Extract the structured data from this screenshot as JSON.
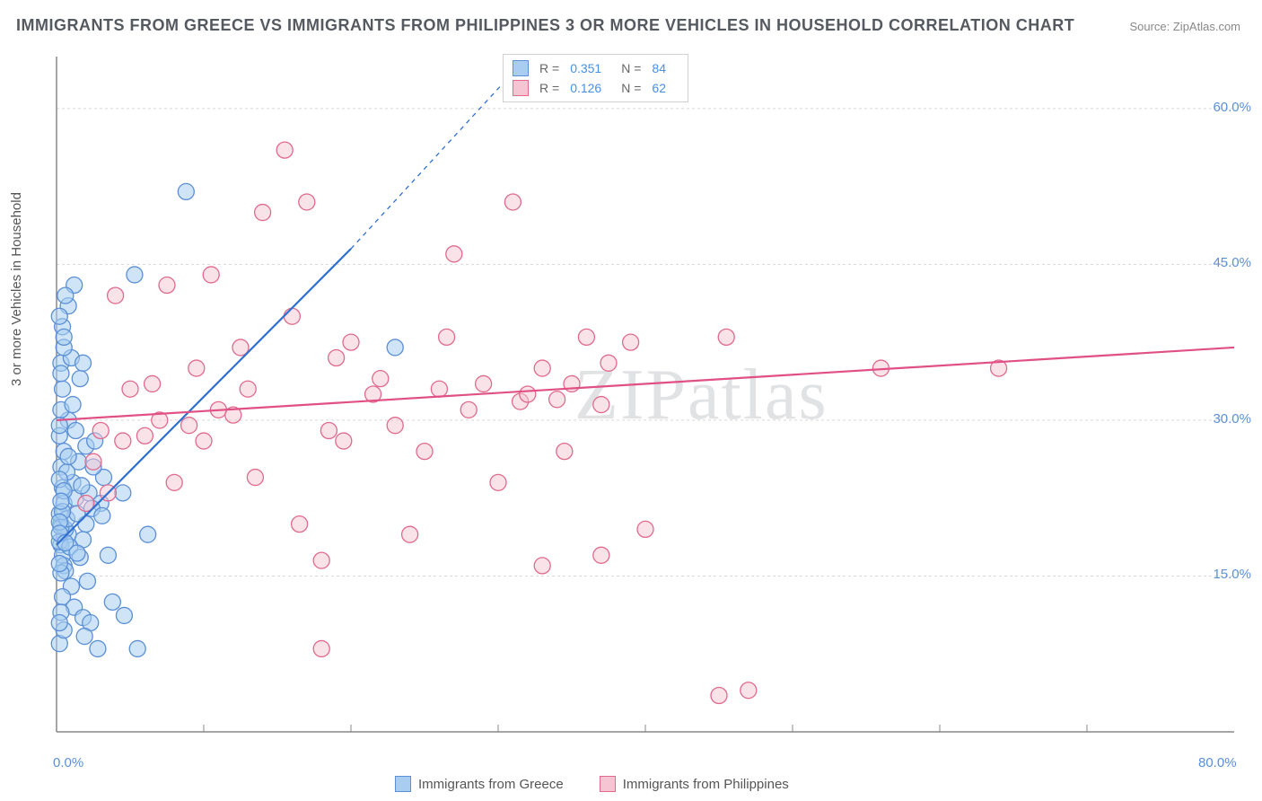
{
  "title": "IMMIGRANTS FROM GREECE VS IMMIGRANTS FROM PHILIPPINES 3 OR MORE VEHICLES IN HOUSEHOLD CORRELATION CHART",
  "source": "Source: ZipAtlas.com",
  "y_axis_label": "3 or more Vehicles in Household",
  "watermark": "ZIPatlas",
  "chart": {
    "type": "scatter",
    "xlim": [
      0,
      80
    ],
    "ylim": [
      0,
      65
    ],
    "x_ticks": [
      0,
      80
    ],
    "x_tick_labels": [
      "0.0%",
      "80.0%"
    ],
    "y_ticks": [
      15,
      30,
      45,
      60
    ],
    "y_tick_labels": [
      "15.0%",
      "30.0%",
      "45.0%",
      "60.0%"
    ],
    "x_minor_ticks": [
      10,
      20,
      30,
      40,
      50,
      60,
      70
    ],
    "background_color": "#ffffff",
    "grid_color": "#d8d8d8",
    "grid_dash": "3,3",
    "axis_color": "#888888",
    "marker_radius": 9,
    "marker_stroke_width": 1.3,
    "series": [
      {
        "name": "Immigrants from Greece",
        "color_fill": "#a8cdf0",
        "color_stroke": "#5b8fd6",
        "fill_opacity": 0.55,
        "trend": {
          "x1": 0,
          "y1": 18,
          "x2": 20,
          "y2": 46.5,
          "color": "#2f6fd0",
          "width": 2.2,
          "extend_dash": true,
          "dash_x2": 32,
          "dash_y2": 65
        },
        "r": "0.351",
        "n": "84",
        "points": [
          [
            0.3,
            18
          ],
          [
            0.4,
            17
          ],
          [
            0.5,
            16
          ],
          [
            0.3,
            20
          ],
          [
            0.8,
            19
          ],
          [
            0.6,
            15.5
          ],
          [
            1,
            14
          ],
          [
            0.4,
            13
          ],
          [
            1.2,
            12
          ],
          [
            0.3,
            11.5
          ],
          [
            1.8,
            11
          ],
          [
            2.3,
            10.5
          ],
          [
            0.2,
            8.5
          ],
          [
            2.8,
            8
          ],
          [
            5.5,
            8
          ],
          [
            0.5,
            22
          ],
          [
            1.3,
            22.5
          ],
          [
            0.4,
            23.5
          ],
          [
            1.1,
            24
          ],
          [
            2.2,
            23
          ],
          [
            0.3,
            25.5
          ],
          [
            1.5,
            26
          ],
          [
            0.5,
            27
          ],
          [
            2,
            27.5
          ],
          [
            0.2,
            28.5
          ],
          [
            2.6,
            28
          ],
          [
            0.8,
            30
          ],
          [
            0.4,
            33
          ],
          [
            1.6,
            34
          ],
          [
            0.3,
            35.5
          ],
          [
            1,
            36
          ],
          [
            0.5,
            37
          ],
          [
            0.8,
            41
          ],
          [
            1.2,
            43
          ],
          [
            5.3,
            44
          ],
          [
            8.8,
            52
          ],
          [
            0.2,
            21
          ],
          [
            3,
            22
          ],
          [
            4.5,
            23
          ],
          [
            6.2,
            19
          ],
          [
            3.5,
            17
          ],
          [
            2,
            20
          ],
          [
            0.6,
            19.5
          ],
          [
            1.8,
            18.5
          ],
          [
            0.3,
            19.7
          ],
          [
            2.4,
            21.5
          ],
          [
            3.2,
            24.5
          ],
          [
            0.7,
            20.5
          ],
          [
            1.4,
            21
          ],
          [
            0.2,
            18.3
          ],
          [
            0.9,
            17.8
          ],
          [
            1.6,
            16.8
          ],
          [
            0.3,
            15.3
          ],
          [
            2.1,
            14.5
          ],
          [
            3.8,
            12.5
          ],
          [
            4.6,
            11.2
          ],
          [
            0.5,
            9.8
          ],
          [
            1.9,
            9.2
          ],
          [
            0.2,
            10.5
          ],
          [
            0.7,
            25
          ],
          [
            0.3,
            31
          ],
          [
            1.1,
            31.5
          ],
          [
            0.4,
            39
          ],
          [
            0.2,
            40
          ],
          [
            23,
            37
          ],
          [
            0.6,
            42
          ],
          [
            0.3,
            34.5
          ],
          [
            1.8,
            35.5
          ],
          [
            0.5,
            38
          ],
          [
            0.2,
            29.5
          ],
          [
            1.3,
            29
          ],
          [
            0.8,
            26.5
          ],
          [
            0.2,
            24.3
          ],
          [
            2.5,
            25.5
          ],
          [
            0.4,
            21.2
          ],
          [
            0.2,
            20.2
          ],
          [
            3.1,
            20.8
          ],
          [
            0.5,
            23.2
          ],
          [
            0.3,
            22.2
          ],
          [
            1.7,
            23.7
          ],
          [
            0.2,
            19.1
          ],
          [
            0.6,
            18.2
          ],
          [
            1.4,
            17.2
          ],
          [
            0.2,
            16.2
          ]
        ]
      },
      {
        "name": "Immigrants from Philippines",
        "color_fill": "#f5c5d3",
        "color_stroke": "#e06a8c",
        "fill_opacity": 0.5,
        "trend": {
          "x1": 0,
          "y1": 30,
          "x2": 80,
          "y2": 37,
          "color": "#e15084",
          "width": 2.2,
          "extend_dash": false
        },
        "r": "0.126",
        "n": "62",
        "points": [
          [
            2,
            22
          ],
          [
            3,
            29
          ],
          [
            3.5,
            23
          ],
          [
            4.5,
            28
          ],
          [
            5,
            33
          ],
          [
            6,
            28.5
          ],
          [
            6.5,
            33.5
          ],
          [
            7,
            30
          ],
          [
            7.5,
            43
          ],
          [
            8,
            24
          ],
          [
            9,
            29.5
          ],
          [
            9.5,
            35
          ],
          [
            10,
            28
          ],
          [
            10.5,
            44
          ],
          [
            11,
            31
          ],
          [
            12,
            30.5
          ],
          [
            12.5,
            37
          ],
          [
            13,
            33
          ],
          [
            13.5,
            24.5
          ],
          [
            14,
            50
          ],
          [
            15.5,
            56
          ],
          [
            16,
            40
          ],
          [
            16.5,
            20
          ],
          [
            17,
            51
          ],
          [
            18,
            16.5
          ],
          [
            18.5,
            29
          ],
          [
            19,
            36
          ],
          [
            19.5,
            28
          ],
          [
            20,
            37.5
          ],
          [
            21.5,
            32.5
          ],
          [
            22,
            34
          ],
          [
            23,
            29.5
          ],
          [
            24,
            19
          ],
          [
            25,
            27
          ],
          [
            26,
            33
          ],
          [
            26.5,
            38
          ],
          [
            27,
            46
          ],
          [
            28,
            31
          ],
          [
            29,
            33.5
          ],
          [
            30,
            24
          ],
          [
            31,
            51
          ],
          [
            31.5,
            31.8
          ],
          [
            32,
            32.5
          ],
          [
            33,
            35
          ],
          [
            34,
            32
          ],
          [
            34.5,
            27
          ],
          [
            35,
            33.5
          ],
          [
            36,
            38
          ],
          [
            37,
            31.5
          ],
          [
            40,
            19.5
          ],
          [
            37,
            17
          ],
          [
            37.5,
            35.5
          ],
          [
            39,
            37.5
          ],
          [
            45.5,
            38
          ],
          [
            56,
            35
          ],
          [
            18,
            8
          ],
          [
            33,
            16
          ],
          [
            47,
            4
          ],
          [
            64,
            35
          ],
          [
            45,
            3.5
          ],
          [
            2.5,
            26
          ],
          [
            4,
            42
          ]
        ]
      }
    ]
  },
  "legend_bottom": [
    {
      "label": "Immigrants from Greece",
      "fill": "#a8cdf0",
      "stroke": "#5b8fd6"
    },
    {
      "label": "Immigrants from Philippines",
      "fill": "#f5c5d3",
      "stroke": "#e06a8c"
    }
  ]
}
